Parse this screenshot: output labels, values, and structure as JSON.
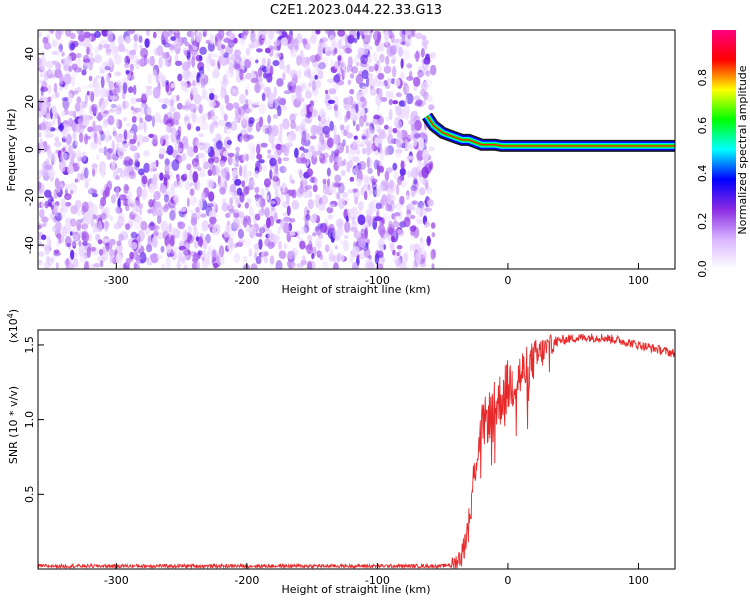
{
  "title": "C2E1.2023.044.22.33.G13",
  "chart_data": [
    {
      "type": "heatmap",
      "xlabel": "Height of straight line (km)",
      "ylabel": "Frequency (Hz)",
      "xlim": [
        -360,
        128
      ],
      "ylim": [
        -50,
        50
      ],
      "xticks": [
        -300,
        -200,
        -100,
        0,
        100
      ],
      "yticks": [
        -40,
        -20,
        0,
        20,
        40
      ],
      "noise_region_x": [
        -360,
        -57
      ],
      "signal_trace": {
        "x": [
          -62,
          -57,
          -50,
          -45,
          -40,
          -35,
          -30,
          -25,
          -20,
          -15,
          -10,
          -5,
          0,
          20,
          40,
          60,
          80,
          100,
          128
        ],
        "y": [
          14,
          10,
          7,
          6,
          5,
          4,
          4,
          3,
          2,
          2,
          2,
          1.5,
          1.5,
          1.5,
          1.5,
          1.5,
          1.5,
          1.5,
          1.5
        ]
      },
      "colorbar": {
        "label": "Normalized spectral amplitude",
        "range": [
          0.0,
          1.0
        ],
        "ticks": [
          0.0,
          0.2,
          0.4,
          0.6,
          0.8
        ],
        "colors": [
          "#ffffff",
          "#d8b4ff",
          "#8a2be2",
          "#0000ff",
          "#00ffff",
          "#00ff00",
          "#ffff00",
          "#ff0000",
          "#ff0080"
        ]
      },
      "grid": false
    },
    {
      "type": "line",
      "xlabel": "Height of straight line (km)",
      "ylabel": "SNR (10 * v/v)",
      "scale_label": "(x10",
      "scale_exp": "4",
      "scale_close": ")",
      "xlim": [
        -360,
        128
      ],
      "ylim": [
        0,
        1.6
      ],
      "xticks": [
        -300,
        -200,
        -100,
        0,
        100
      ],
      "yticks": [
        0.5,
        1.0,
        1.5
      ],
      "yticklabels": [
        "0.5",
        "1.0",
        "1.5"
      ],
      "series": [
        {
          "color": "#e8292a",
          "x": [
            -360,
            -300,
            -200,
            -100,
            -50,
            -40,
            -35,
            -30,
            -27,
            -25,
            -22,
            -20,
            -18,
            -15,
            -12,
            -10,
            -5,
            0,
            5,
            10,
            15,
            20,
            25,
            30,
            35,
            40,
            50,
            60,
            70,
            80,
            90,
            100,
            110,
            120,
            128
          ],
          "y": [
            0.02,
            0.02,
            0.02,
            0.02,
            0.02,
            0.04,
            0.1,
            0.3,
            0.55,
            0.7,
            0.85,
            0.95,
            0.98,
            1.02,
            1.05,
            1.08,
            1.15,
            1.22,
            1.26,
            1.3,
            1.34,
            1.4,
            1.44,
            1.48,
            1.51,
            1.53,
            1.545,
            1.55,
            1.55,
            1.54,
            1.52,
            1.5,
            1.48,
            1.46,
            1.44
          ]
        }
      ],
      "grid": false
    }
  ]
}
